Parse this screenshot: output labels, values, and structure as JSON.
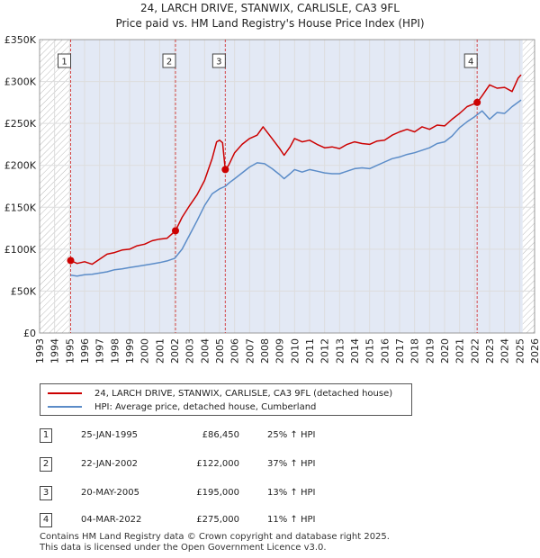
{
  "title": "24, LARCH DRIVE, STANWIX, CARLISLE, CA3 9FL",
  "subtitle": "Price paid vs. HM Land Registry's House Price Index (HPI)",
  "colors": {
    "property": "#cc0000",
    "hpi": "#5b8cc8",
    "shade": "#e3e9f5",
    "hatch": "#bbbbbb",
    "grid": "#dddddd"
  },
  "legend": {
    "property": "24, LARCH DRIVE, STANWIX, CARLISLE, CA3 9FL (detached house)",
    "hpi": "HPI: Average price, detached house, Cumberland"
  },
  "sales": [
    {
      "num": "1",
      "date": "25-JAN-1995",
      "price": "£86,450",
      "hpi": "25% ↑ HPI"
    },
    {
      "num": "2",
      "date": "22-JAN-2002",
      "price": "£122,000",
      "hpi": "37% ↑ HPI"
    },
    {
      "num": "3",
      "date": "20-MAY-2005",
      "price": "£195,000",
      "hpi": "13% ↑ HPI"
    },
    {
      "num": "4",
      "date": "04-MAR-2022",
      "price": "£275,000",
      "hpi": "11% ↑ HPI"
    }
  ],
  "footer": {
    "line1": "Contains HM Land Registry data © Crown copyright and database right 2025.",
    "line2": "This data is licensed under the Open Government Licence v3.0."
  },
  "chart_data": {
    "type": "line",
    "title": "24, LARCH DRIVE, STANWIX, CARLISLE, CA3 9FL",
    "subtitle": "Price paid vs. HM Land Registry's House Price Index (HPI)",
    "xlim": [
      1993,
      2026
    ],
    "ylim": [
      0,
      350000
    ],
    "x_ticks": [
      1993,
      1994,
      1995,
      1996,
      1997,
      1998,
      1999,
      2000,
      2001,
      2002,
      2003,
      2004,
      2005,
      2006,
      2007,
      2008,
      2009,
      2010,
      2011,
      2012,
      2013,
      2014,
      2015,
      2016,
      2017,
      2018,
      2019,
      2020,
      2021,
      2022,
      2023,
      2024,
      2025,
      2026
    ],
    "y_ticks": [
      {
        "value": 0,
        "label": "£0"
      },
      {
        "value": 50000,
        "label": "£50K"
      },
      {
        "value": 100000,
        "label": "£100K"
      },
      {
        "value": 150000,
        "label": "£150K"
      },
      {
        "value": 200000,
        "label": "£200K"
      },
      {
        "value": 250000,
        "label": "£250K"
      },
      {
        "value": 300000,
        "label": "£300K"
      },
      {
        "value": 350000,
        "label": "£350K"
      }
    ],
    "shaded_range": [
      1995.07,
      2025.2
    ],
    "series": [
      {
        "name": "24, LARCH DRIVE, STANWIX, CARLISLE, CA3 9FL (detached house)",
        "x": [
          1995.07,
          1995.5,
          1996,
          1996.5,
          1997,
          1997.5,
          1998,
          1998.5,
          1999,
          1999.5,
          2000,
          2000.5,
          2001,
          2001.5,
          2002.06,
          2002.5,
          2003,
          2003.5,
          2004,
          2004.5,
          2004.8,
          2005.0,
          2005.2,
          2005.38,
          2005.6,
          2006,
          2006.5,
          2007,
          2007.5,
          2007.9,
          2008.5,
          2009,
          2009.3,
          2009.7,
          2010,
          2010.5,
          2011,
          2011.5,
          2012,
          2012.5,
          2013,
          2013.5,
          2014,
          2014.5,
          2015,
          2015.5,
          2016,
          2016.5,
          2017,
          2017.5,
          2018,
          2018.5,
          2019,
          2019.5,
          2020,
          2020.5,
          2021,
          2021.5,
          2022.17,
          2022.5,
          2023,
          2023.5,
          2024,
          2024.5,
          2024.9,
          2025.1
        ],
        "values": [
          86450,
          83000,
          85000,
          82000,
          88000,
          94000,
          96000,
          99000,
          100000,
          104000,
          106000,
          110000,
          112000,
          113000,
          122000,
          138000,
          152000,
          165000,
          182000,
          208000,
          228000,
          230000,
          227000,
          195000,
          200000,
          215000,
          225000,
          232000,
          236000,
          246000,
          232000,
          220000,
          212000,
          222000,
          232000,
          228000,
          230000,
          225000,
          221000,
          222000,
          220000,
          225000,
          228000,
          226000,
          225000,
          229000,
          230000,
          236000,
          240000,
          243000,
          240000,
          246000,
          243000,
          248000,
          247000,
          255000,
          262000,
          270000,
          275000,
          283000,
          296000,
          292000,
          293000,
          288000,
          304000,
          308000
        ]
      },
      {
        "name": "HPI: Average price, detached house, Cumberland",
        "x": [
          1995.07,
          1995.5,
          1996,
          1996.5,
          1997,
          1997.5,
          1998,
          1998.5,
          1999,
          1999.5,
          2000,
          2000.5,
          2001,
          2001.5,
          2002,
          2002.5,
          2003,
          2003.5,
          2004,
          2004.5,
          2005,
          2005.38,
          2005.7,
          2006,
          2006.5,
          2007,
          2007.5,
          2008,
          2008.5,
          2009,
          2009.3,
          2009.7,
          2010,
          2010.5,
          2011,
          2011.5,
          2012,
          2012.5,
          2013,
          2013.5,
          2014,
          2014.5,
          2015,
          2015.5,
          2016,
          2016.5,
          2017,
          2017.5,
          2018,
          2018.5,
          2019,
          2019.5,
          2020,
          2020.5,
          2021,
          2021.5,
          2022,
          2022.5,
          2023,
          2023.5,
          2024,
          2024.5,
          2025.1
        ],
        "values": [
          69000,
          68000,
          69500,
          70000,
          71500,
          73000,
          75500,
          76500,
          78000,
          79500,
          81000,
          82500,
          84000,
          86000,
          89000,
          100000,
          117000,
          134000,
          152000,
          166000,
          172000,
          175000,
          180000,
          184000,
          191000,
          198000,
          203000,
          202000,
          196000,
          189000,
          184000,
          190000,
          195000,
          192000,
          195000,
          193000,
          191000,
          190000,
          190000,
          193000,
          196000,
          197000,
          196000,
          200000,
          204000,
          208000,
          210000,
          213000,
          215000,
          218000,
          221000,
          226000,
          228000,
          235000,
          245000,
          252000,
          258000,
          265000,
          255000,
          263000,
          262000,
          270000,
          278000
        ]
      }
    ],
    "sale_markers": [
      {
        "label": "1",
        "x": 1995.07,
        "value": 86450
      },
      {
        "label": "2",
        "x": 2002.06,
        "value": 122000
      },
      {
        "label": "3",
        "x": 2005.38,
        "value": 195000
      },
      {
        "label": "4",
        "x": 2022.17,
        "value": 275000
      }
    ],
    "legend_position": "bottom"
  }
}
